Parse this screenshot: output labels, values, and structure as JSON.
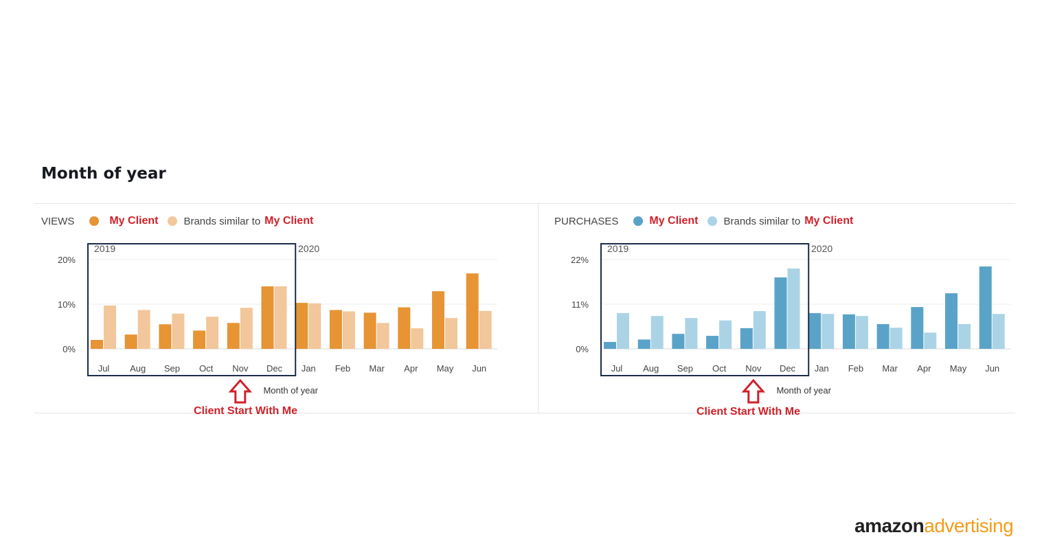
{
  "page_title": "Month of year",
  "legend_client_label": "My Client",
  "legend_similar_prefix": "Brands similar to",
  "annotation": "Client Start With Me",
  "logo": {
    "part1": "amazon",
    "part2": "advertising"
  },
  "colors": {
    "views_client": "#e69434",
    "views_similar": "#f2c79b",
    "purchases_client": "#5aa3c8",
    "purchases_similar": "#abd3e6",
    "annotation_red": "#d0212a",
    "highlight_box": "#1b2a4a"
  },
  "chart_data": [
    {
      "type": "bar",
      "metric": "VIEWS",
      "year_labels": [
        "2019",
        "2020"
      ],
      "categories": [
        "Jul",
        "Aug",
        "Sep",
        "Oct",
        "Nov",
        "Dec",
        "Jan",
        "Feb",
        "Mar",
        "Apr",
        "May",
        "Jun"
      ],
      "series": [
        {
          "name": "My Client",
          "values": [
            2.0,
            3.2,
            5.5,
            4.1,
            5.8,
            14.0,
            10.3,
            8.7,
            8.1,
            9.3,
            12.9,
            16.9
          ]
        },
        {
          "name": "Brands similar to My Client",
          "values": [
            9.7,
            8.7,
            7.9,
            7.2,
            9.2,
            14.0,
            10.2,
            8.4,
            5.8,
            4.6,
            6.9,
            8.5
          ]
        }
      ],
      "y_ticks": [
        "0%",
        "10%",
        "20%"
      ],
      "ylim": [
        0,
        20
      ],
      "xlabel": "Month of year",
      "highlight_range": [
        "Jul",
        "Dec"
      ],
      "annotation_at": "Nov"
    },
    {
      "type": "bar",
      "metric": "PURCHASES",
      "year_labels": [
        "2019",
        "2020"
      ],
      "categories": [
        "Jul",
        "Aug",
        "Sep",
        "Oct",
        "Nov",
        "Dec",
        "Jan",
        "Feb",
        "Mar",
        "Apr",
        "May",
        "Jun"
      ],
      "series": [
        {
          "name": "My Client",
          "values": [
            1.7,
            2.3,
            3.7,
            3.2,
            5.1,
            17.6,
            8.8,
            8.5,
            6.1,
            10.3,
            13.7,
            20.3
          ]
        },
        {
          "name": "Brands similar to My Client",
          "values": [
            8.8,
            8.1,
            7.6,
            7.0,
            9.3,
            19.8,
            8.6,
            8.1,
            5.2,
            4.0,
            6.1,
            8.6
          ]
        }
      ],
      "y_ticks": [
        "0%",
        "11%",
        "22%"
      ],
      "ylim": [
        0,
        22
      ],
      "xlabel": "Month of year",
      "highlight_range": [
        "Jul",
        "Dec"
      ],
      "annotation_at": "Nov"
    }
  ]
}
